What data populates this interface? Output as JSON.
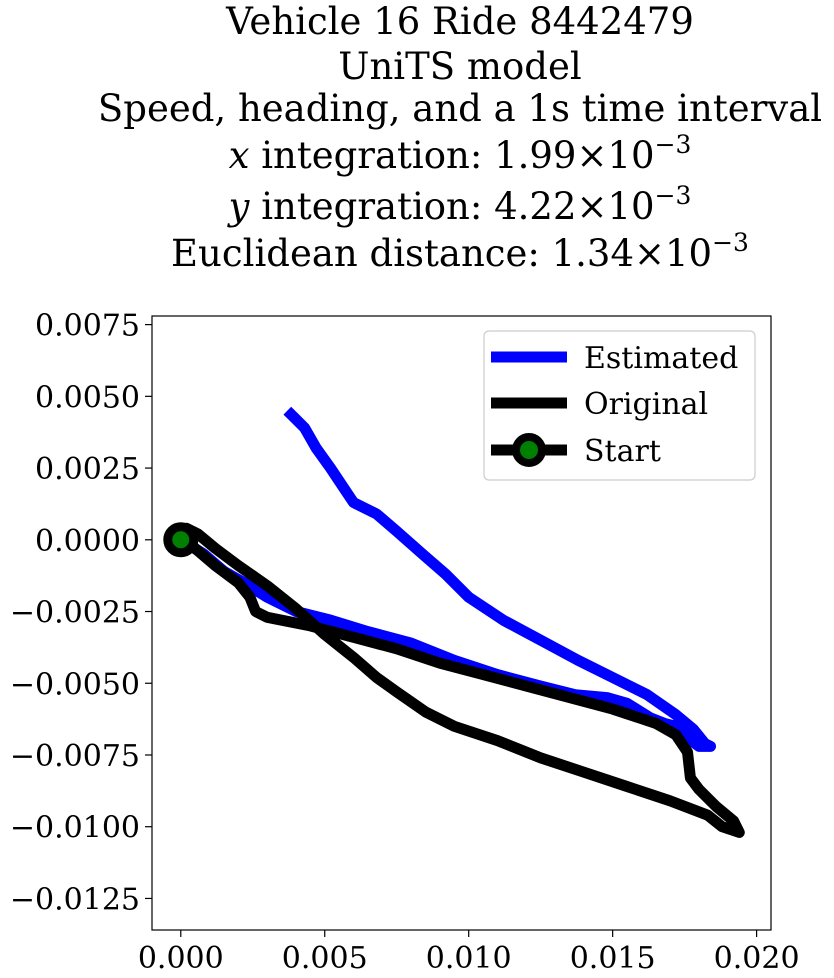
{
  "chart_data": {
    "type": "line",
    "title": {
      "line1": "Vehicle 16 Ride 8442479",
      "line2": "UniTS model",
      "line3": "Speed, heading, and a 1s time interval",
      "x_var": "x",
      "x_text": " integration: 1.99",
      "x_exp": "−3",
      "y_var": "y",
      "y_text": " integration: 4.22",
      "y_exp": "−3",
      "dist_text": "Euclidean distance: 1.34",
      "dist_exp": "−3",
      "times_ten": "×10"
    },
    "xlim": [
      -0.001,
      0.0205
    ],
    "ylim": [
      -0.0136,
      0.0078
    ],
    "xticks": [
      {
        "value": 0.0,
        "label": "0.000"
      },
      {
        "value": 0.005,
        "label": "0.005"
      },
      {
        "value": 0.01,
        "label": "0.010"
      },
      {
        "value": 0.015,
        "label": "0.015"
      },
      {
        "value": 0.02,
        "label": "0.020"
      }
    ],
    "yticks": [
      {
        "value": 0.0075,
        "label": "0.0075"
      },
      {
        "value": 0.005,
        "label": "0.0050"
      },
      {
        "value": 0.0025,
        "label": "0.0025"
      },
      {
        "value": 0.0,
        "label": "0.0000"
      },
      {
        "value": -0.0025,
        "label": "−0.0025"
      },
      {
        "value": -0.005,
        "label": "−0.0050"
      },
      {
        "value": -0.0075,
        "label": "−0.0075"
      },
      {
        "value": -0.01,
        "label": "−0.0100"
      },
      {
        "value": -0.0125,
        "label": "−0.0125"
      }
    ],
    "grid": false,
    "legend_placement": "top-right",
    "series": [
      {
        "name": "Estimated",
        "color": "#0000ff",
        "points": [
          [
            0.0,
            0.0
          ],
          [
            0.0008,
            -0.0005
          ],
          [
            0.0015,
            -0.0011
          ],
          [
            0.0022,
            -0.0015
          ],
          [
            0.003,
            -0.002
          ],
          [
            0.004,
            -0.0025
          ],
          [
            0.0052,
            -0.0028
          ],
          [
            0.0065,
            -0.0032
          ],
          [
            0.008,
            -0.0036
          ],
          [
            0.0095,
            -0.0042
          ],
          [
            0.011,
            -0.0047
          ],
          [
            0.0125,
            -0.0051
          ],
          [
            0.0137,
            -0.0054
          ],
          [
            0.0148,
            -0.0055
          ],
          [
            0.0155,
            -0.0057
          ],
          [
            0.0163,
            -0.0062
          ],
          [
            0.0168,
            -0.0064
          ],
          [
            0.0172,
            -0.0065
          ],
          [
            0.0176,
            -0.0069
          ],
          [
            0.018,
            -0.0072
          ],
          [
            0.0184,
            -0.0072
          ],
          [
            0.0182,
            -0.0071
          ],
          [
            0.0178,
            -0.0066
          ],
          [
            0.0172,
            -0.0061
          ],
          [
            0.0162,
            -0.0054
          ],
          [
            0.015,
            -0.0048
          ],
          [
            0.0138,
            -0.0042
          ],
          [
            0.0125,
            -0.0035
          ],
          [
            0.0112,
            -0.0028
          ],
          [
            0.01,
            -0.002
          ],
          [
            0.0092,
            -0.0012
          ],
          [
            0.0084,
            -0.0005
          ],
          [
            0.0075,
            0.0003
          ],
          [
            0.0068,
            0.0009
          ],
          [
            0.006,
            0.0013
          ],
          [
            0.0056,
            0.0019
          ],
          [
            0.0052,
            0.0025
          ],
          [
            0.0047,
            0.0032
          ],
          [
            0.0043,
            0.0039
          ],
          [
            0.0039,
            0.0043
          ],
          [
            0.0037,
            0.0045
          ]
        ]
      },
      {
        "name": "Original",
        "color": "#000000",
        "points": [
          [
            0.0,
            0.0
          ],
          [
            0.0005,
            -0.0003
          ],
          [
            0.0012,
            -0.0009
          ],
          [
            0.002,
            -0.0015
          ],
          [
            0.0024,
            -0.002
          ],
          [
            0.0026,
            -0.0025
          ],
          [
            0.003,
            -0.0027
          ],
          [
            0.0045,
            -0.003
          ],
          [
            0.006,
            -0.0034
          ],
          [
            0.0075,
            -0.0038
          ],
          [
            0.009,
            -0.0043
          ],
          [
            0.0105,
            -0.0047
          ],
          [
            0.012,
            -0.0051
          ],
          [
            0.0135,
            -0.0055
          ],
          [
            0.015,
            -0.0059
          ],
          [
            0.0165,
            -0.0064
          ],
          [
            0.0172,
            -0.0068
          ],
          [
            0.0176,
            -0.0074
          ],
          [
            0.0177,
            -0.0083
          ],
          [
            0.018,
            -0.0087
          ],
          [
            0.0186,
            -0.0093
          ],
          [
            0.0192,
            -0.0098
          ],
          [
            0.0194,
            -0.0102
          ],
          [
            0.0188,
            -0.01
          ],
          [
            0.0183,
            -0.0096
          ],
          [
            0.017,
            -0.0091
          ],
          [
            0.0155,
            -0.0086
          ],
          [
            0.014,
            -0.0081
          ],
          [
            0.0125,
            -0.0076
          ],
          [
            0.011,
            -0.007
          ],
          [
            0.0095,
            -0.0065
          ],
          [
            0.0085,
            -0.006
          ],
          [
            0.0075,
            -0.0053
          ],
          [
            0.0068,
            -0.0048
          ],
          [
            0.006,
            -0.0041
          ],
          [
            0.005,
            -0.0033
          ],
          [
            0.004,
            -0.0024
          ],
          [
            0.003,
            -0.0016
          ],
          [
            0.002,
            -0.0009
          ],
          [
            0.0012,
            -0.0003
          ],
          [
            0.0006,
            0.0002
          ],
          [
            0.0002,
            0.0004
          ],
          [
            0.0,
            0.0
          ]
        ]
      },
      {
        "name": "Start",
        "color": "#000000",
        "marker_face": "#008000",
        "points": [
          [
            0.0,
            0.0
          ]
        ]
      }
    ]
  }
}
